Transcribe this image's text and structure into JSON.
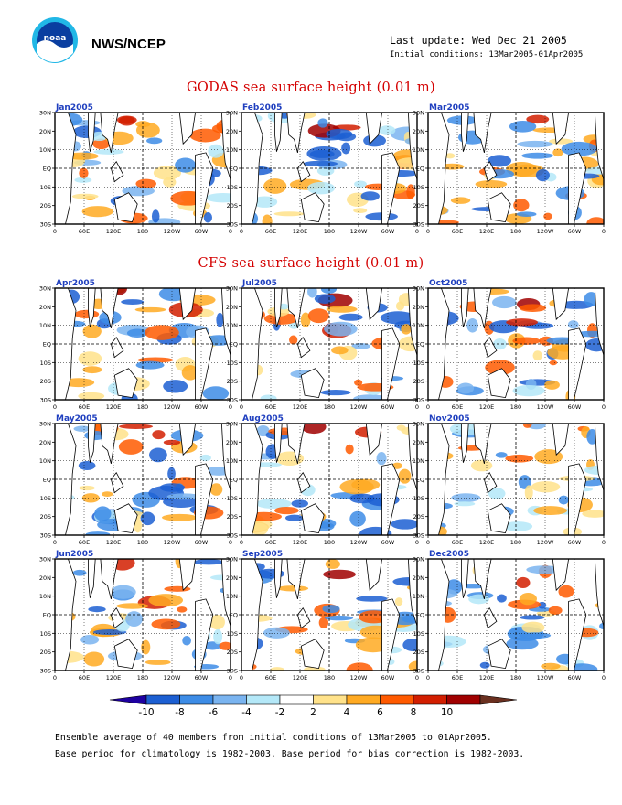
{
  "header": {
    "agency": "NWS/NCEP",
    "last_update": "Last update: Wed Dec 21 2005",
    "initial_conditions": "Initial conditions: 13Mar2005-01Apr2005",
    "logo": "noaa-logo",
    "logo_text": "noaa"
  },
  "sections": [
    {
      "title": "GODAS sea surface height (0.01 m)"
    },
    {
      "title": "CFS sea surface height (0.01 m)"
    }
  ],
  "chart_data": {
    "type": "heatmap",
    "variable": "sea surface height anomaly",
    "units": "0.01 m",
    "x_ticks": [
      "0",
      "60E",
      "120E",
      "180",
      "120W",
      "60W",
      "0"
    ],
    "y_ticks": [
      "30N",
      "20N",
      "10N",
      "EQ",
      "10S",
      "20S",
      "30S"
    ],
    "xlim": [
      "0",
      "0"
    ],
    "ylim": [
      "30S",
      "30N"
    ],
    "panels": [
      {
        "label": "Jan2005",
        "source": "GODAS"
      },
      {
        "label": "Feb2005",
        "source": "GODAS"
      },
      {
        "label": "Mar2005",
        "source": "GODAS"
      },
      {
        "label": "Apr2005",
        "source": "CFS"
      },
      {
        "label": "Jul2005",
        "source": "CFS"
      },
      {
        "label": "Oct2005",
        "source": "CFS"
      },
      {
        "label": "May2005",
        "source": "CFS"
      },
      {
        "label": "Aug2005",
        "source": "CFS"
      },
      {
        "label": "Nov2005",
        "source": "CFS"
      },
      {
        "label": "Jun2005",
        "source": "CFS"
      },
      {
        "label": "Sep2005",
        "source": "CFS"
      },
      {
        "label": "Dec2005",
        "source": "CFS"
      }
    ],
    "colorbar": {
      "tick_labels": [
        "-10",
        "-8",
        "-6",
        "-4",
        "-2",
        "2",
        "4",
        "6",
        "8",
        "10"
      ],
      "colors": [
        "#1e00a0",
        "#1c5fd2",
        "#3d8ce6",
        "#7ab4f0",
        "#b4e8f8",
        "#ffffff",
        "#ffe28a",
        "#ffaa22",
        "#ff5a00",
        "#d21e00",
        "#a00000",
        "#6a3020"
      ]
    }
  },
  "footer": {
    "line1": "Ensemble average of 40 members from initial conditions of 13Mar2005 to 01Apr2005.",
    "line2": "Base period for climatology is 1982-2003. Base period for bias correction is 1982-2003."
  }
}
